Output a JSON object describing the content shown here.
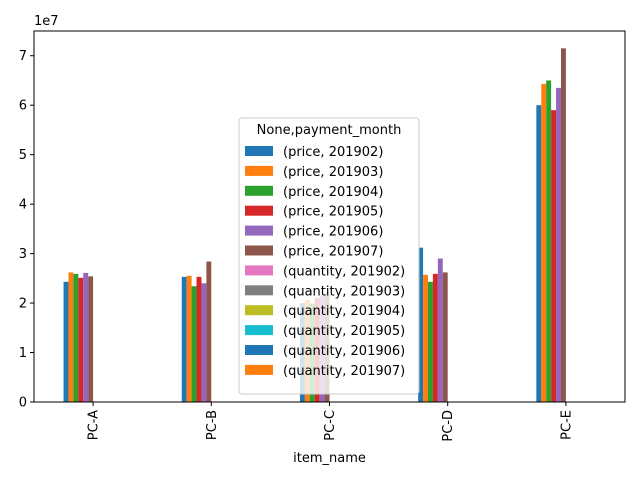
{
  "chart_data": {
    "type": "bar",
    "xlabel": "item_name",
    "ylabel": "",
    "offset_label": "1e7",
    "ylim": [
      0,
      75000000
    ],
    "yticks": [
      0,
      10000000,
      20000000,
      30000000,
      40000000,
      50000000,
      60000000,
      70000000
    ],
    "ytick_labels": [
      "0",
      "1",
      "2",
      "3",
      "4",
      "5",
      "6",
      "7"
    ],
    "categories": [
      "PC-A",
      "PC-B",
      "PC-C",
      "PC-D",
      "PC-E"
    ],
    "legend": {
      "title": "None,payment_month",
      "placement": "center"
    },
    "series": [
      {
        "name": "(price, 201902)",
        "color": "#1f77b4",
        "values": [
          24300000,
          25300000,
          20000000,
          31200000,
          60000000
        ]
      },
      {
        "name": "(price, 201903)",
        "color": "#ff7f0e",
        "values": [
          26200000,
          25500000,
          20600000,
          25700000,
          64300000
        ]
      },
      {
        "name": "(price, 201904)",
        "color": "#2ca02c",
        "values": [
          25900000,
          23400000,
          19900000,
          24300000,
          65000000
        ]
      },
      {
        "name": "(price, 201905)",
        "color": "#d62728",
        "values": [
          25100000,
          25300000,
          21000000,
          25900000,
          59000000
        ]
      },
      {
        "name": "(price, 201906)",
        "color": "#9467bd",
        "values": [
          26100000,
          24000000,
          21500000,
          29000000,
          63500000
        ]
      },
      {
        "name": "(price, 201907)",
        "color": "#8c564b",
        "values": [
          25400000,
          28400000,
          22000000,
          26200000,
          71500000
        ]
      },
      {
        "name": "(quantity, 201902)",
        "color": "#e377c2",
        "values": [
          0,
          0,
          0,
          0,
          0
        ]
      },
      {
        "name": "(quantity, 201903)",
        "color": "#7f7f7f",
        "values": [
          0,
          0,
          0,
          0,
          0
        ]
      },
      {
        "name": "(quantity, 201904)",
        "color": "#bcbd22",
        "values": [
          0,
          0,
          0,
          0,
          0
        ]
      },
      {
        "name": "(quantity, 201905)",
        "color": "#17becf",
        "values": [
          0,
          0,
          0,
          0,
          0
        ]
      },
      {
        "name": "(quantity, 201906)",
        "color": "#1f77b4",
        "values": [
          0,
          0,
          0,
          0,
          0
        ]
      },
      {
        "name": "(quantity, 201907)",
        "color": "#ff7f0e",
        "values": [
          0,
          0,
          0,
          0,
          0
        ]
      }
    ]
  }
}
